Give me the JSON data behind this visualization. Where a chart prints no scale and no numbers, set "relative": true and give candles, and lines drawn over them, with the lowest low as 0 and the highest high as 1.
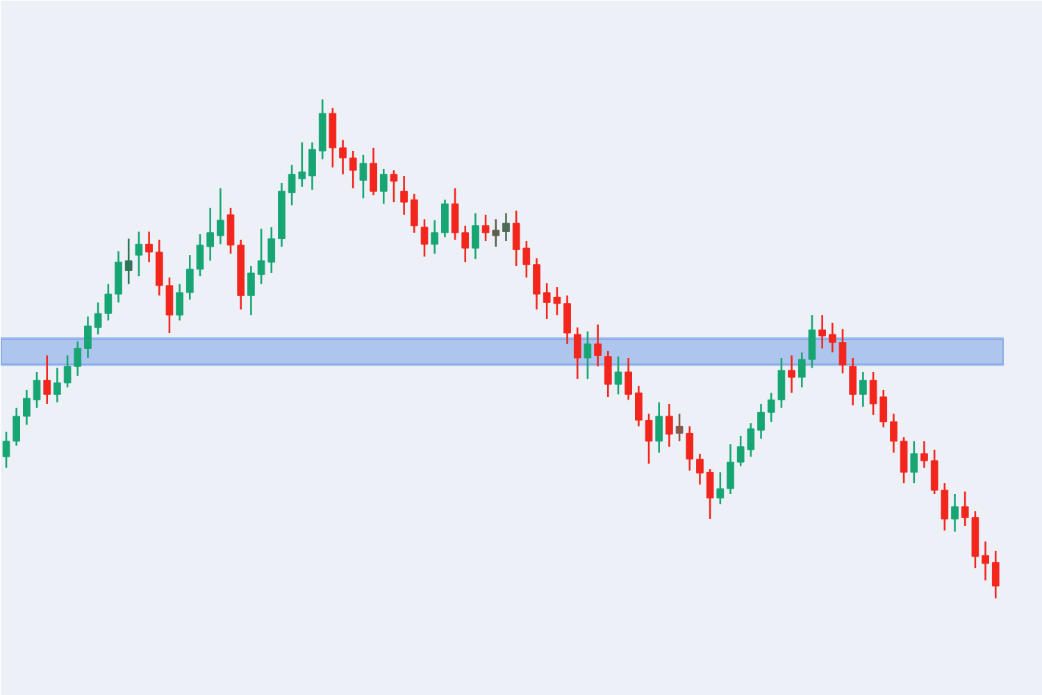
{
  "chart_data": {
    "type": "candlestick",
    "relative": true,
    "categories": [
      null,
      null,
      null,
      null,
      null,
      null,
      null,
      null,
      null,
      null,
      null,
      null,
      null,
      null,
      null,
      null,
      null,
      null,
      null,
      null,
      null,
      null,
      null,
      null,
      null,
      null,
      null,
      null,
      null,
      null,
      null,
      null,
      null,
      null,
      null,
      null,
      null,
      null,
      null,
      null,
      null,
      null,
      null,
      null,
      null,
      null,
      null,
      null,
      null,
      null,
      null,
      null,
      null,
      null,
      null,
      null,
      null,
      null,
      null,
      null,
      null,
      null,
      null,
      null,
      null,
      null,
      null,
      null,
      null,
      null,
      null,
      null,
      null,
      null,
      null,
      null,
      null,
      null,
      null,
      null,
      null,
      null,
      null,
      null,
      null,
      null,
      null,
      null,
      null,
      null,
      null,
      null,
      null,
      null,
      null,
      null,
      null,
      null
    ],
    "ohlc": [
      [
        0.284,
        0.334,
        0.262,
        0.315
      ],
      [
        0.315,
        0.382,
        0.306,
        0.365
      ],
      [
        0.365,
        0.418,
        0.348,
        0.401
      ],
      [
        0.398,
        0.454,
        0.382,
        0.437
      ],
      [
        0.437,
        0.487,
        0.39,
        0.409
      ],
      [
        0.409,
        0.462,
        0.393,
        0.432
      ],
      [
        0.432,
        0.487,
        0.423,
        0.465
      ],
      [
        0.465,
        0.515,
        0.446,
        0.501
      ],
      [
        0.501,
        0.565,
        0.482,
        0.546
      ],
      [
        0.543,
        0.593,
        0.529,
        0.571
      ],
      [
        0.571,
        0.63,
        0.557,
        0.61
      ],
      [
        0.61,
        0.696,
        0.593,
        0.674
      ],
      [
        0.657,
        0.721,
        0.63,
        0.677
      ],
      [
        0.688,
        0.735,
        0.646,
        0.71
      ],
      [
        0.71,
        0.735,
        0.674,
        0.694
      ],
      [
        0.694,
        0.719,
        0.607,
        0.627
      ],
      [
        0.627,
        0.643,
        0.532,
        0.568
      ],
      [
        0.568,
        0.63,
        0.557,
        0.613
      ],
      [
        0.613,
        0.688,
        0.599,
        0.66
      ],
      [
        0.66,
        0.73,
        0.646,
        0.708
      ],
      [
        0.705,
        0.783,
        0.677,
        0.733
      ],
      [
        0.727,
        0.822,
        0.71,
        0.758
      ],
      [
        0.769,
        0.783,
        0.691,
        0.708
      ],
      [
        0.708,
        0.719,
        0.579,
        0.607
      ],
      [
        0.607,
        0.666,
        0.568,
        0.652
      ],
      [
        0.649,
        0.741,
        0.63,
        0.677
      ],
      [
        0.674,
        0.744,
        0.652,
        0.721
      ],
      [
        0.721,
        0.833,
        0.705,
        0.816
      ],
      [
        0.813,
        0.869,
        0.788,
        0.85
      ],
      [
        0.841,
        0.914,
        0.825,
        0.855
      ],
      [
        0.847,
        0.914,
        0.819,
        0.9
      ],
      [
        0.897,
        1.0,
        0.88,
        0.972
      ],
      [
        0.972,
        0.983,
        0.864,
        0.903
      ],
      [
        0.903,
        0.919,
        0.85,
        0.883
      ],
      [
        0.883,
        0.897,
        0.822,
        0.858
      ],
      [
        0.838,
        0.889,
        0.802,
        0.872
      ],
      [
        0.872,
        0.903,
        0.808,
        0.816
      ],
      [
        0.816,
        0.861,
        0.791,
        0.85
      ],
      [
        0.85,
        0.858,
        0.794,
        0.836
      ],
      [
        0.816,
        0.847,
        0.769,
        0.794
      ],
      [
        0.799,
        0.811,
        0.733,
        0.747
      ],
      [
        0.744,
        0.76,
        0.685,
        0.71
      ],
      [
        0.71,
        0.758,
        0.691,
        0.733
      ],
      [
        0.733,
        0.799,
        0.724,
        0.791
      ],
      [
        0.791,
        0.822,
        0.719,
        0.733
      ],
      [
        0.733,
        0.747,
        0.674,
        0.702
      ],
      [
        0.702,
        0.772,
        0.68,
        0.747
      ],
      [
        0.747,
        0.769,
        0.716,
        0.733
      ],
      [
        0.727,
        0.76,
        0.705,
        0.738
      ],
      [
        0.735,
        0.772,
        0.716,
        0.752
      ],
      [
        0.752,
        0.777,
        0.666,
        0.699
      ],
      [
        0.702,
        0.716,
        0.643,
        0.669
      ],
      [
        0.669,
        0.682,
        0.579,
        0.61
      ],
      [
        0.613,
        0.632,
        0.56,
        0.593
      ],
      [
        0.604,
        0.624,
        0.568,
        0.591
      ],
      [
        0.591,
        0.607,
        0.51,
        0.532
      ],
      [
        0.529,
        0.543,
        0.44,
        0.482
      ],
      [
        0.482,
        0.535,
        0.44,
        0.51
      ],
      [
        0.51,
        0.549,
        0.465,
        0.487
      ],
      [
        0.485,
        0.496,
        0.404,
        0.429
      ],
      [
        0.429,
        0.485,
        0.409,
        0.454
      ],
      [
        0.454,
        0.482,
        0.398,
        0.409
      ],
      [
        0.412,
        0.426,
        0.345,
        0.357
      ],
      [
        0.357,
        0.37,
        0.27,
        0.315
      ],
      [
        0.315,
        0.393,
        0.292,
        0.365
      ],
      [
        0.365,
        0.39,
        0.304,
        0.329
      ],
      [
        0.345,
        0.37,
        0.315,
        0.331
      ],
      [
        0.331,
        0.345,
        0.256,
        0.279
      ],
      [
        0.279,
        0.29,
        0.228,
        0.251
      ],
      [
        0.253,
        0.259,
        0.159,
        0.201
      ],
      [
        0.201,
        0.253,
        0.189,
        0.22
      ],
      [
        0.22,
        0.309,
        0.209,
        0.273
      ],
      [
        0.273,
        0.326,
        0.265,
        0.304
      ],
      [
        0.298,
        0.351,
        0.284,
        0.34
      ],
      [
        0.337,
        0.39,
        0.32,
        0.373
      ],
      [
        0.373,
        0.412,
        0.354,
        0.398
      ],
      [
        0.398,
        0.482,
        0.382,
        0.457
      ],
      [
        0.457,
        0.487,
        0.412,
        0.443
      ],
      [
        0.443,
        0.493,
        0.423,
        0.479
      ],
      [
        0.479,
        0.568,
        0.462,
        0.538
      ],
      [
        0.538,
        0.568,
        0.501,
        0.526
      ],
      [
        0.529,
        0.552,
        0.493,
        0.513
      ],
      [
        0.513,
        0.54,
        0.451,
        0.468
      ],
      [
        0.465,
        0.482,
        0.387,
        0.409
      ],
      [
        0.409,
        0.454,
        0.384,
        0.437
      ],
      [
        0.437,
        0.454,
        0.368,
        0.39
      ],
      [
        0.404,
        0.418,
        0.343,
        0.354
      ],
      [
        0.354,
        0.37,
        0.292,
        0.315
      ],
      [
        0.315,
        0.323,
        0.231,
        0.253
      ],
      [
        0.253,
        0.315,
        0.231,
        0.29
      ],
      [
        0.29,
        0.315,
        0.262,
        0.276
      ],
      [
        0.276,
        0.298,
        0.209,
        0.217
      ],
      [
        0.217,
        0.231,
        0.136,
        0.159
      ],
      [
        0.159,
        0.209,
        0.134,
        0.184
      ],
      [
        0.184,
        0.214,
        0.145,
        0.162
      ],
      [
        0.162,
        0.175,
        0.061,
        0.084
      ],
      [
        0.086,
        0.114,
        0.036,
        0.07
      ],
      [
        0.072,
        0.095,
        0.0,
        0.025
      ]
    ],
    "colors": [
      "#17a673",
      "#17a673",
      "#17a673",
      "#17a673",
      "#f3261d",
      "#17a673",
      "#17a673",
      "#17a673",
      "#17a673",
      "#17a673",
      "#17a673",
      "#17a673",
      "#2f7559",
      "#17a673",
      "#f3261d",
      "#f3261d",
      "#f3261d",
      "#17a673",
      "#17a673",
      "#17a673",
      "#17a673",
      "#17a673",
      "#f3261d",
      "#f3261d",
      "#17a673",
      "#17a673",
      "#17a673",
      "#17a673",
      "#17a673",
      "#17a673",
      "#17a673",
      "#17a673",
      "#f3261d",
      "#f3261d",
      "#f3261d",
      "#17a673",
      "#f3261d",
      "#17a673",
      "#f3261d",
      "#f3261d",
      "#f3261d",
      "#f3261d",
      "#17a673",
      "#17a673",
      "#f3261d",
      "#f3261d",
      "#17a673",
      "#f3261d",
      "#5c5f4a",
      "#4f6b57",
      "#f3261d",
      "#f3261d",
      "#f3261d",
      "#f3261d",
      "#f3261d",
      "#f3261d",
      "#f3261d",
      "#17a673",
      "#f3261d",
      "#f3261d",
      "#17a673",
      "#f3261d",
      "#f3261d",
      "#f3261d",
      "#17a673",
      "#f3261d",
      "#85584a",
      "#f3261d",
      "#f3261d",
      "#f3261d",
      "#17a673",
      "#17a673",
      "#17a673",
      "#17a673",
      "#17a673",
      "#17a673",
      "#17a673",
      "#f3261d",
      "#17a673",
      "#17a673",
      "#f3261d",
      "#f3261d",
      "#f3261d",
      "#f3261d",
      "#17a673",
      "#f3261d",
      "#f3261d",
      "#f3261d",
      "#f3261d",
      "#17a673",
      "#f3261d",
      "#f3261d",
      "#f3261d",
      "#17a673",
      "#f3261d",
      "#f3261d",
      "#f3261d",
      "#f3261d"
    ],
    "bands": [
      {
        "axis": "y",
        "from": 0.468,
        "to": 0.521,
        "color": "#2f6fdf"
      }
    ]
  }
}
